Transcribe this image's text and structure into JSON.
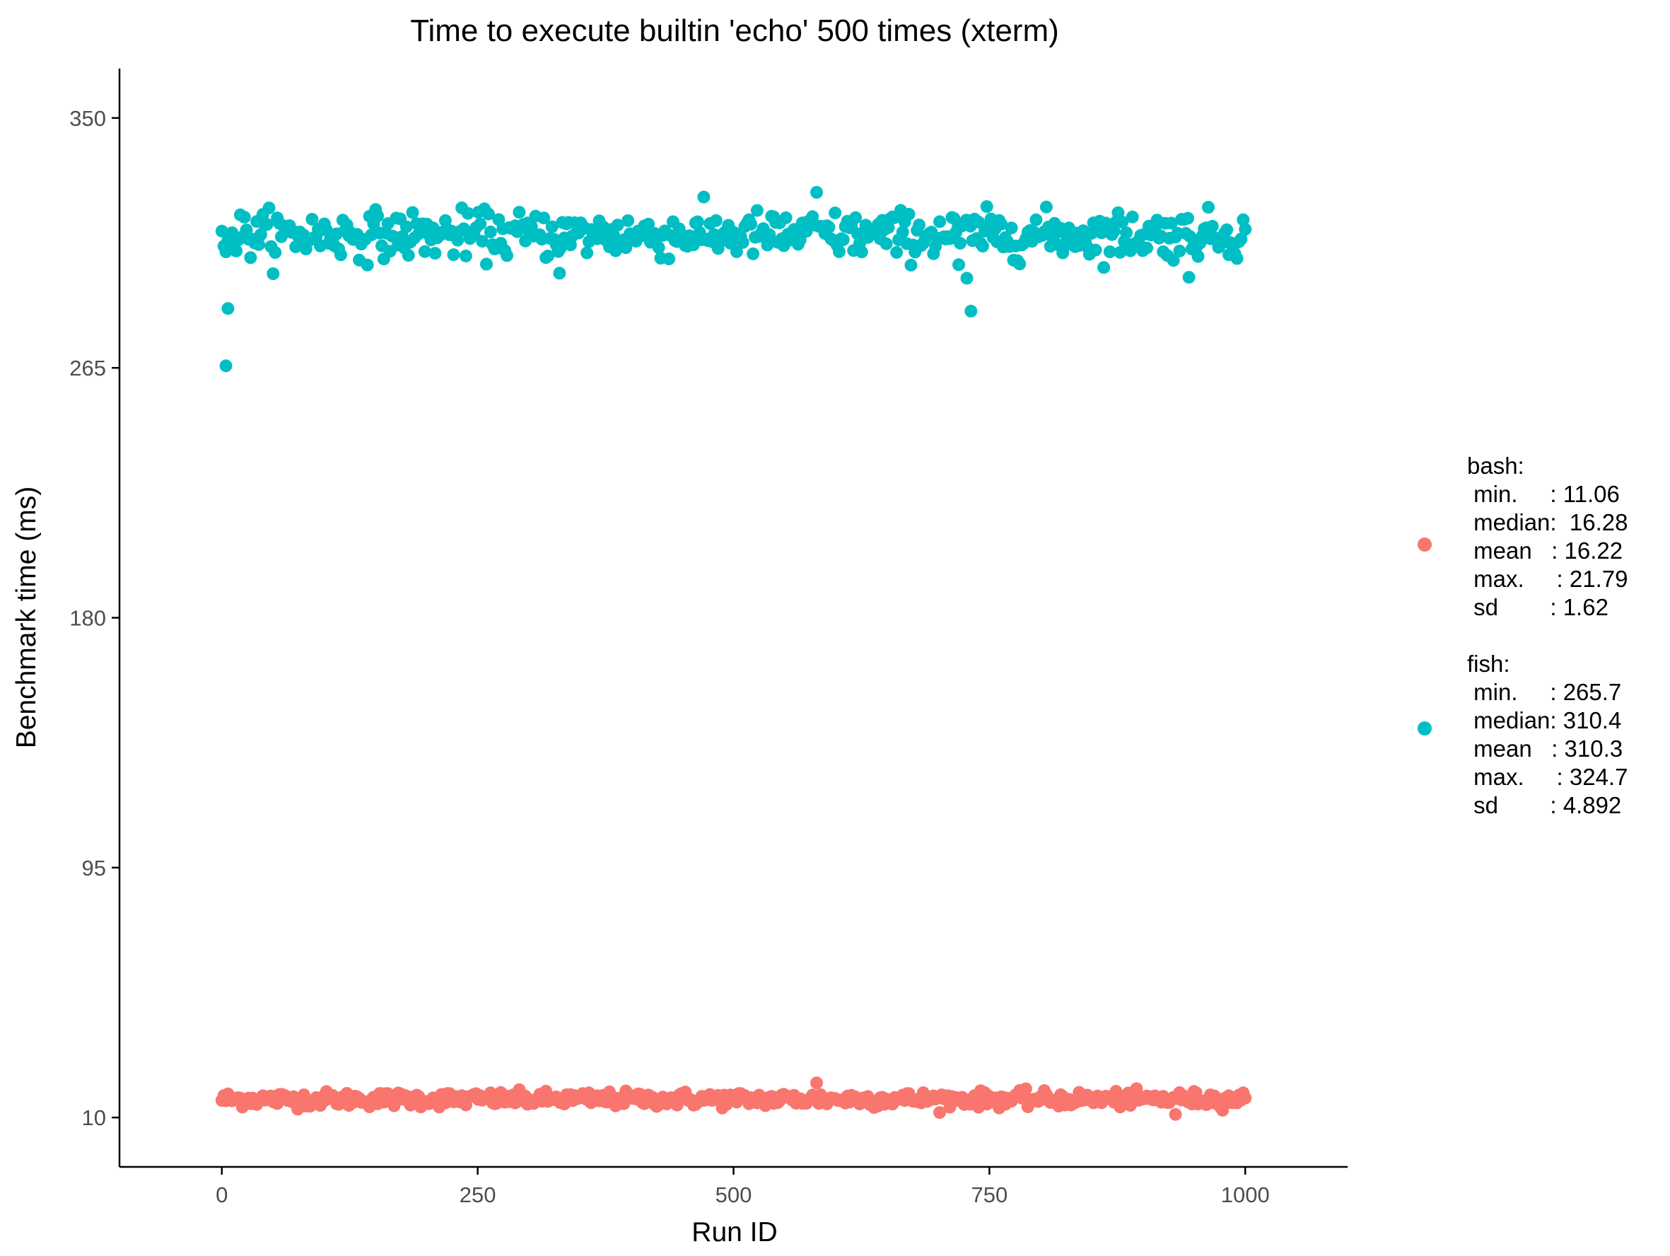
{
  "chart_data": {
    "type": "scatter",
    "title": "Time to execute builtin 'echo' 500 times (xterm)",
    "xlabel": "Run ID",
    "ylabel": "Benchmark time (ms)",
    "xlim": [
      -100,
      1100
    ],
    "ylim": [
      -6.8,
      366.8
    ],
    "x_ticks": [
      0,
      250,
      500,
      750,
      1000
    ],
    "x_tick_labels": [
      "0",
      "250",
      "500",
      "750",
      "1000"
    ],
    "y_ticks": [
      10,
      95,
      180,
      265,
      350
    ],
    "y_tick_labels": [
      "10",
      "95",
      "180",
      "265",
      "350"
    ],
    "grid": false,
    "legend_position": "right",
    "series": [
      {
        "key": "bash",
        "color": "#F8766D",
        "n_points": 500,
        "x_range": [
          0,
          1000
        ],
        "min": 11.06,
        "median": 16.28,
        "mean": 16.22,
        "max": 21.79,
        "sd": 1.62,
        "legend_lines": [
          "bash:",
          " min.     : 11.06",
          " median:  16.28",
          " mean   : 16.22",
          " max.     : 21.79",
          " sd        : 1.62"
        ]
      },
      {
        "key": "fish",
        "color": "#00BFC4",
        "n_points": 500,
        "x_range": [
          0,
          1000
        ],
        "min": 265.7,
        "median": 310.4,
        "mean": 310.3,
        "max": 324.7,
        "sd": 4.892,
        "outliers": [
          {
            "x": 4,
            "y": 265.7
          },
          {
            "x": 6,
            "y": 285.2
          },
          {
            "x": 732,
            "y": 284.3
          },
          {
            "x": 728,
            "y": 295.5
          },
          {
            "x": 720,
            "y": 300.1
          },
          {
            "x": 945,
            "y": 295.8
          },
          {
            "x": 330,
            "y": 297.2
          }
        ],
        "legend_lines": [
          "fish:",
          " min.     : 265.7",
          " median: 310.4",
          " mean   : 310.3",
          " max.     : 324.7",
          " sd        : 4.892"
        ]
      }
    ]
  }
}
